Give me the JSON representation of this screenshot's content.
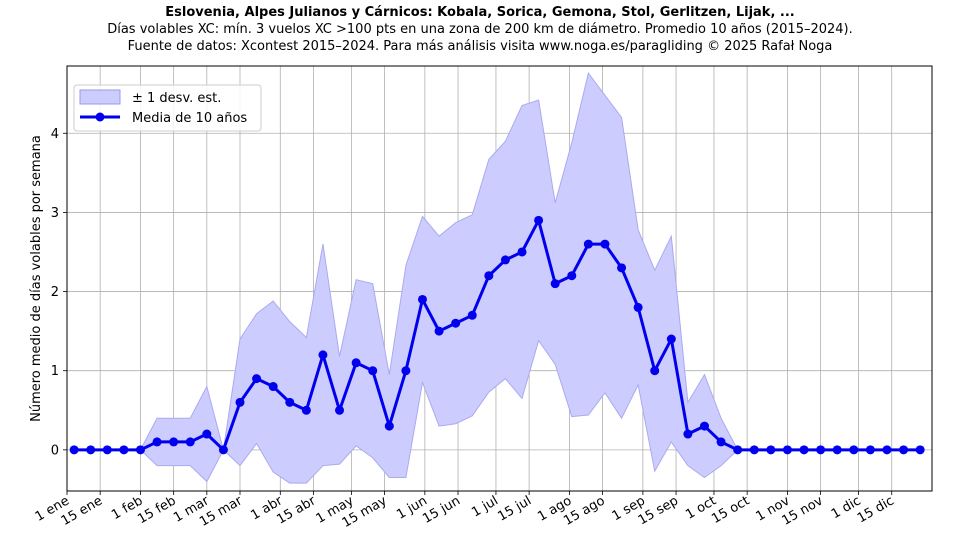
{
  "header": {
    "title": "Eslovenia, Alpes Julianos y Cárnicos: Kobala, Sorica, Gemona, Stol, Gerlitzen, Lijak, ...",
    "subtitle_1": "Días volables XC: mín. 3 vuelos XC >100 pts en una zona de 200 km de diámetro. Promedio 10 años (2015–2024).",
    "subtitle_2": "Fuente de datos: Xcontest 2015–2024. Para más análisis visita www.noga.es/paragliding © 2025 Rafał Noga"
  },
  "chart_data": {
    "type": "line",
    "title": "Eslovenia, Alpes Julianos y Cárnicos: Kobala, Sorica, Gemona, Stol, Gerlitzen, Lijak, ...",
    "ylabel": "Número medio de días volables por semana",
    "xlabel": "",
    "ylim": [
      -0.52,
      4.85
    ],
    "grid": true,
    "legend_position": "top-left",
    "x_ticks": [
      "1 ene",
      "15 ene",
      "1 feb",
      "15 feb",
      "1 mar",
      "15 mar",
      "1 abr",
      "15 abr",
      "1 may",
      "15 may",
      "1 jun",
      "15 jun",
      "1 jul",
      "15 jul",
      "1 ago",
      "15 ago",
      "1 sep",
      "15 sep",
      "1 oct",
      "15 oct",
      "1 nov",
      "15 nov",
      "1 dic",
      "15 dic"
    ],
    "x_tick_days": [
      1,
      15,
      32,
      46,
      60,
      74,
      91,
      105,
      121,
      135,
      152,
      166,
      182,
      196,
      213,
      227,
      244,
      258,
      274,
      288,
      305,
      319,
      335,
      349
    ],
    "y_ticks": [
      0,
      1,
      2,
      3,
      4
    ],
    "week_start_days": [
      4,
      11,
      18,
      25,
      32,
      39,
      46,
      53,
      60,
      67,
      74,
      81,
      88,
      95,
      102,
      109,
      116,
      123,
      130,
      137,
      144,
      151,
      158,
      165,
      172,
      179,
      186,
      193,
      200,
      207,
      214,
      221,
      228,
      235,
      242,
      249,
      256,
      263,
      270,
      277,
      284,
      291,
      298,
      305,
      312,
      319,
      326,
      333,
      340,
      347,
      354,
      361
    ],
    "series": [
      {
        "name": "Media de 10 años",
        "color": "#0000ee",
        "values": [
          0,
          0,
          0,
          0,
          0,
          0.1,
          0.1,
          0.1,
          0.2,
          0,
          0.6,
          0.9,
          0.8,
          0.6,
          0.5,
          1.2,
          0.5,
          1.1,
          1.0,
          0.3,
          1.0,
          1.9,
          1.5,
          1.6,
          1.7,
          2.2,
          2.4,
          2.5,
          2.9,
          2.1,
          2.2,
          2.6,
          2.6,
          2.3,
          1.8,
          1.0,
          1.4,
          0.2,
          0.3,
          0.1,
          0,
          0,
          0,
          0,
          0,
          0,
          0,
          0,
          0,
          0,
          0,
          0
        ]
      },
      {
        "name": "± 1 desv. est.",
        "color": "#ccccff",
        "upper": [
          0,
          0,
          0,
          0,
          0,
          0.4,
          0.4,
          0.4,
          0.8,
          0,
          1.4,
          1.72,
          1.88,
          1.62,
          1.42,
          2.6,
          1.18,
          2.15,
          2.1,
          0.95,
          2.33,
          2.95,
          2.7,
          2.87,
          2.97,
          3.67,
          3.9,
          4.35,
          4.42,
          3.12,
          3.88,
          4.76,
          4.48,
          4.2,
          2.78,
          2.27,
          2.7,
          0.6,
          0.95,
          0.4,
          0,
          0,
          0,
          0,
          0,
          0,
          0,
          0,
          0,
          0,
          0,
          0
        ],
        "lower": [
          0,
          0,
          0,
          0,
          0,
          -0.2,
          -0.2,
          -0.2,
          -0.4,
          0,
          -0.2,
          0.08,
          -0.28,
          -0.42,
          -0.42,
          -0.2,
          -0.18,
          0.05,
          -0.1,
          -0.35,
          -0.35,
          0.85,
          0.3,
          0.33,
          0.43,
          0.73,
          0.9,
          0.65,
          1.38,
          1.08,
          0.42,
          0.44,
          0.72,
          0.4,
          0.82,
          -0.27,
          0.1,
          -0.2,
          -0.35,
          -0.2,
          0,
          0,
          0,
          0,
          0,
          0,
          0,
          0,
          0,
          0,
          0,
          0
        ]
      }
    ]
  }
}
